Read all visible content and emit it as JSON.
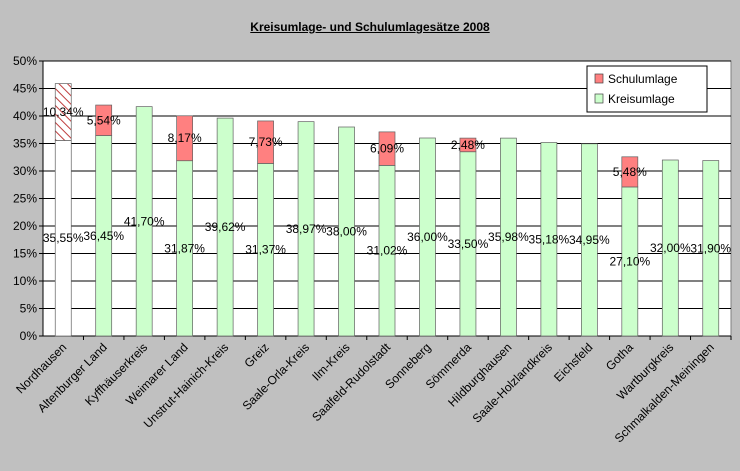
{
  "chart_data": {
    "type": "bar",
    "title": "Kreisumlage- und Schulumlagesätze 2008",
    "ylim": [
      0,
      50
    ],
    "yticks": [
      0,
      5,
      10,
      15,
      20,
      25,
      30,
      35,
      40,
      45,
      50
    ],
    "y_tick_labels": [
      "0%",
      "5%",
      "10%",
      "15%",
      "20%",
      "25%",
      "30%",
      "35%",
      "40%",
      "45%",
      "50%"
    ],
    "grid": true,
    "legend_position": "top-right",
    "categories": [
      "Nordhausen",
      "Altenburger Land",
      "Kyffhäuserkreis",
      "Weimarer Land",
      "Unstrut-Hainich-Kreis",
      "Greiz",
      "Saale-Orla-Kreis",
      "Ilm-Kreis",
      "Saalfeld-Rudolstadt",
      "Sonneberg",
      "Sömmerda",
      "Hildburghausen",
      "Saale-Holzlandkreis",
      "Eichsfeld",
      "Gotha",
      "Wartburgkreis",
      "Schmalkalden-Meiningen"
    ],
    "series": [
      {
        "name": "Kreisumlage",
        "color": "#ccffcc",
        "values": [
          35.55,
          36.45,
          41.7,
          31.87,
          39.62,
          31.37,
          38.97,
          38.0,
          31.02,
          36.0,
          33.5,
          35.98,
          35.18,
          34.95,
          27.1,
          32.0,
          31.9
        ],
        "labels": [
          "35,55%",
          "36,45%",
          "41,70%",
          "31,87%",
          "39,62%",
          "31,37%",
          "38,97%",
          "38,00%",
          "31,02%",
          "36,00%",
          "33,50%",
          "35,98%",
          "35,18%",
          "34,95%",
          "27,10%",
          "32,00%",
          "31,90%"
        ]
      },
      {
        "name": "Schulumlage",
        "color": "#ff8080",
        "values": [
          10.34,
          5.54,
          null,
          8.17,
          null,
          7.73,
          null,
          null,
          6.09,
          null,
          2.48,
          null,
          null,
          null,
          5.48,
          null,
          null
        ],
        "labels": [
          "10,34%",
          "5,54%",
          null,
          "8,17%",
          null,
          "7,73%",
          null,
          null,
          "6,09%",
          null,
          "2,48%",
          null,
          null,
          null,
          "5,48%",
          null,
          null
        ]
      }
    ],
    "hatched_categories": [
      "Nordhausen"
    ]
  }
}
